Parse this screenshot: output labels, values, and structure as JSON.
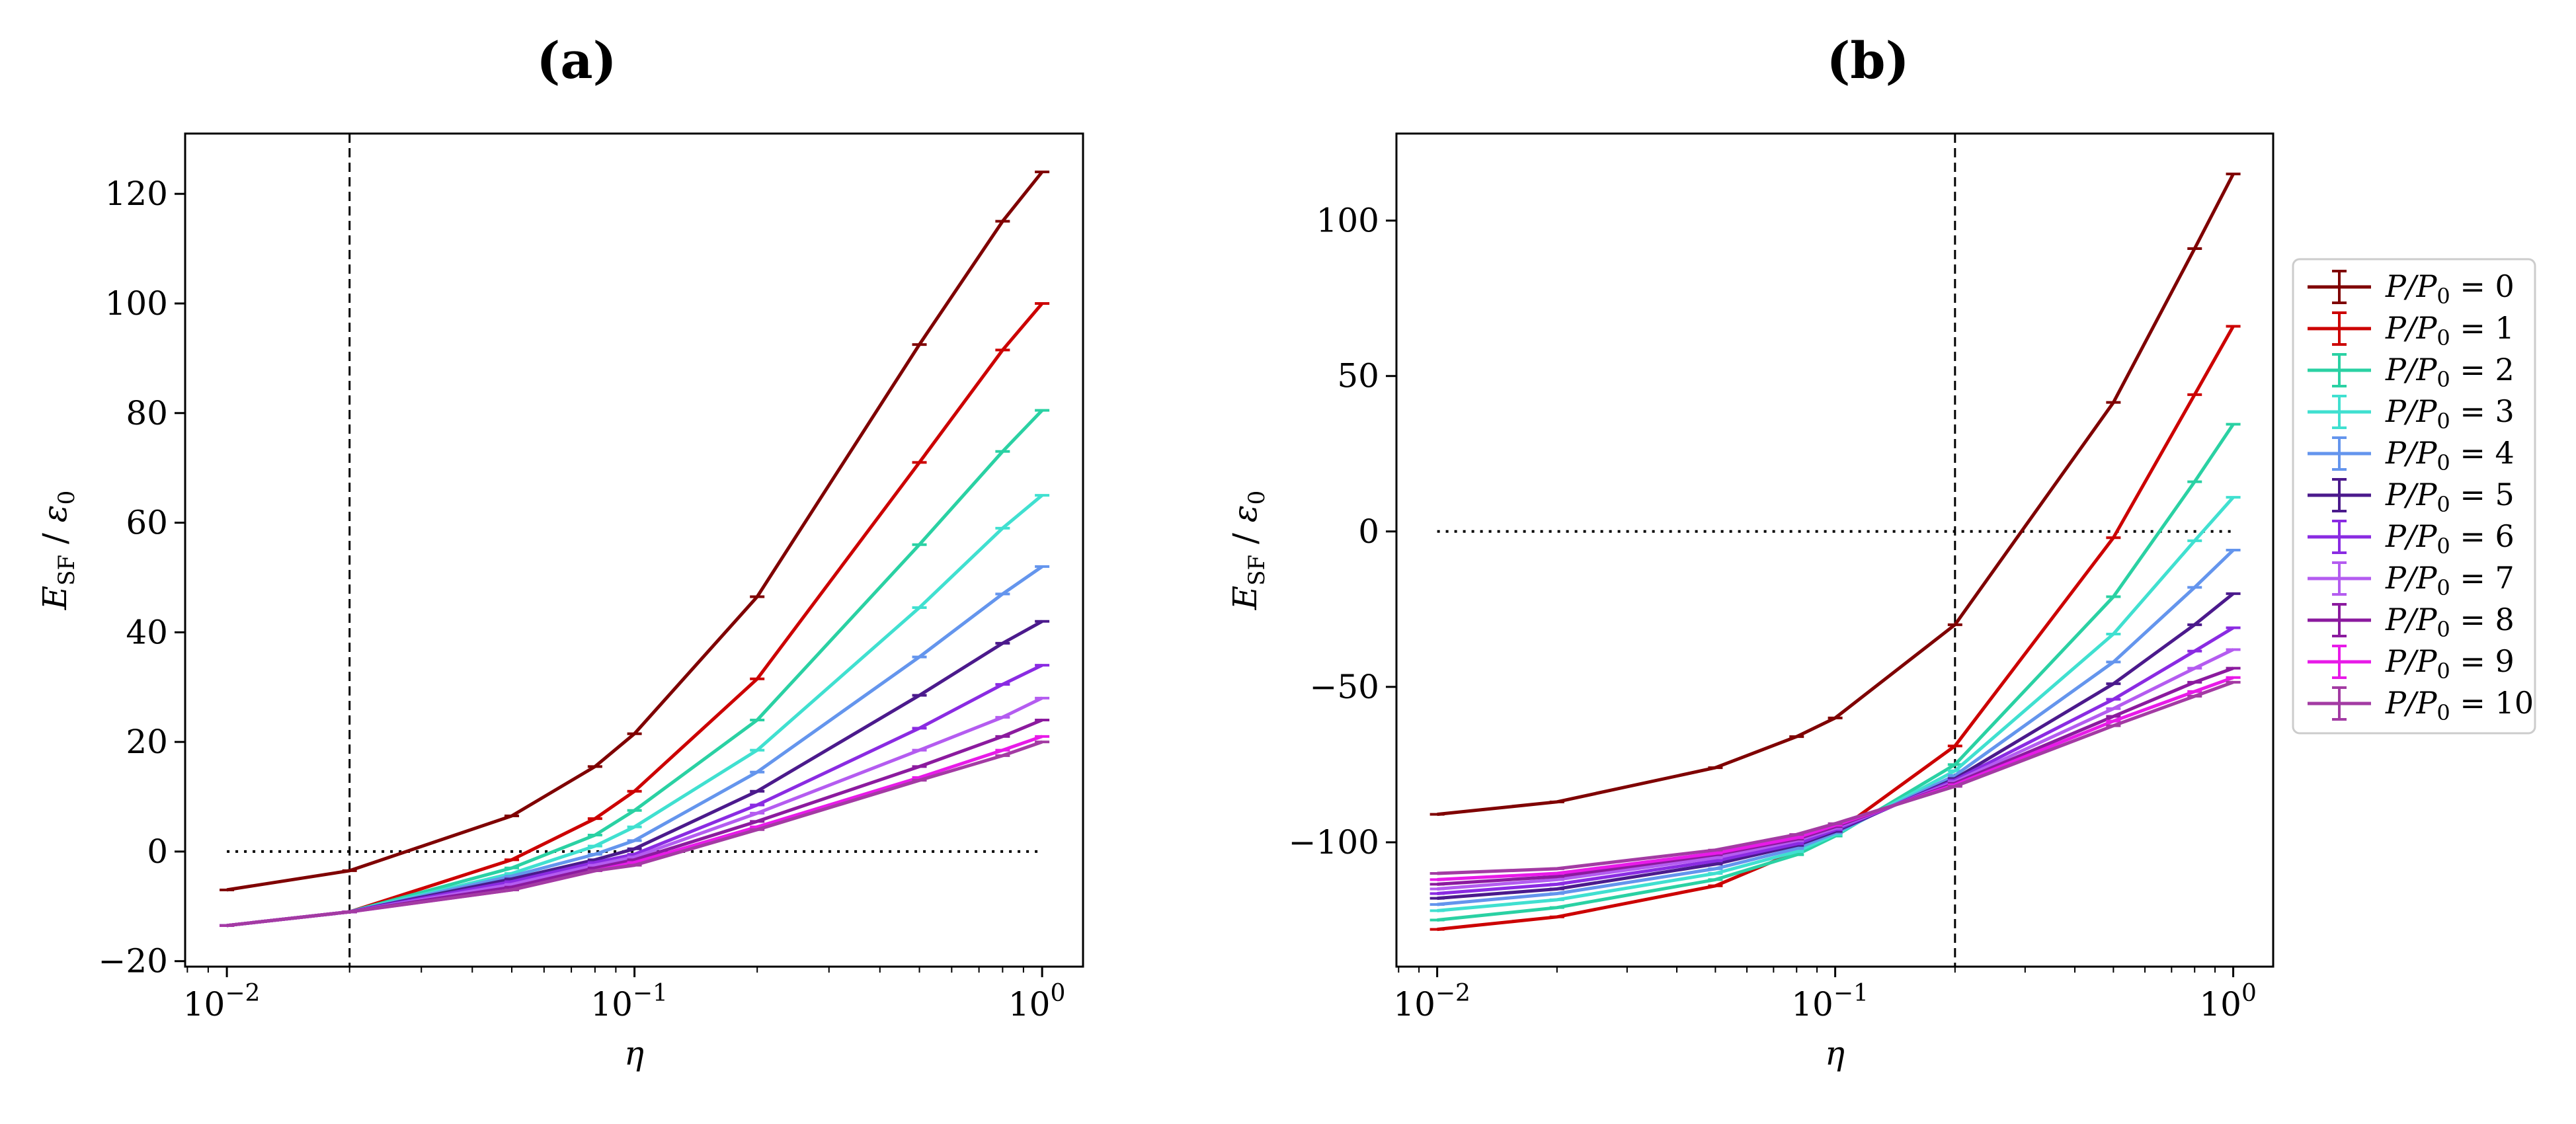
{
  "chart_data": [
    {
      "type": "line",
      "panel_label": "(a)",
      "xscale": "log",
      "xlim": [
        0.0079,
        1.26
      ],
      "ylim": [
        -21,
        131
      ],
      "xlabel": "η",
      "ylabel": "E_SF / ε_0",
      "ylabel_parts": {
        "main": "E",
        "sub": "SF",
        "sep": " / ",
        "main2": "ε",
        "sub2": "0"
      },
      "xticks": [
        {
          "value": 0.01,
          "base": "10",
          "exp": "−2"
        },
        {
          "value": 0.1,
          "base": "10",
          "exp": "−1"
        },
        {
          "value": 1,
          "base": "10",
          "exp": "0"
        }
      ],
      "yticks": [
        {
          "value": -20,
          "label": "−20"
        },
        {
          "value": 0,
          "label": "0"
        },
        {
          "value": 20,
          "label": "20"
        },
        {
          "value": 40,
          "label": "40"
        },
        {
          "value": 60,
          "label": "60"
        },
        {
          "value": 80,
          "label": "80"
        },
        {
          "value": 100,
          "label": "100"
        },
        {
          "value": 120,
          "label": "120"
        }
      ],
      "vline": 0.02,
      "hline": {
        "y": 0,
        "x": [
          0.01,
          1.0
        ]
      },
      "series": [
        {
          "name": "P/P0 = 0",
          "color": "#7f0000",
          "x": [
            0.01,
            0.02,
            0.05,
            0.08,
            0.1,
            0.2,
            0.5,
            0.8,
            1.0
          ],
          "values": [
            -7,
            -3.5,
            6.5,
            15.5,
            21.5,
            46.5,
            92.5,
            115,
            124
          ]
        },
        {
          "name": "P/P0 = 1",
          "color": "#cc0000",
          "x": [
            0.01,
            0.02,
            0.05,
            0.08,
            0.1,
            0.2,
            0.5,
            0.8,
            1.0
          ],
          "values": [
            -13.5,
            -11,
            -1.5,
            6,
            11,
            31.5,
            71,
            91.5,
            100
          ]
        },
        {
          "name": "P/P0 = 2",
          "color": "#2ad1a3",
          "x": [
            0.01,
            0.02,
            0.05,
            0.08,
            0.1,
            0.2,
            0.5,
            0.8,
            1.0
          ],
          "values": [
            -13.5,
            -11,
            -3,
            3,
            7.5,
            24,
            56,
            73,
            80.5
          ]
        },
        {
          "name": "P/P0 = 3",
          "color": "#40e0d0",
          "x": [
            0.01,
            0.02,
            0.05,
            0.08,
            0.1,
            0.2,
            0.5,
            0.8,
            1.0
          ],
          "values": [
            -13.5,
            -11,
            -4,
            1,
            4.5,
            18.5,
            44.5,
            59,
            65
          ]
        },
        {
          "name": "P/P0 = 4",
          "color": "#6495ed",
          "x": [
            0.01,
            0.02,
            0.05,
            0.08,
            0.1,
            0.2,
            0.5,
            0.8,
            1.0
          ],
          "values": [
            -13.5,
            -11,
            -4.5,
            -0.5,
            2,
            14.5,
            35.5,
            47,
            52
          ]
        },
        {
          "name": "P/P0 = 5",
          "color": "#4b1a8c",
          "x": [
            0.01,
            0.02,
            0.05,
            0.08,
            0.1,
            0.2,
            0.5,
            0.8,
            1.0
          ],
          "values": [
            -13.5,
            -11,
            -5,
            -1.5,
            0.5,
            11,
            28.5,
            38,
            42
          ]
        },
        {
          "name": "P/P0 = 6",
          "color": "#8a2be2",
          "x": [
            0.01,
            0.02,
            0.05,
            0.08,
            0.1,
            0.2,
            0.5,
            0.8,
            1.0
          ],
          "values": [
            -13.5,
            -11,
            -5.5,
            -2,
            -0.5,
            8.5,
            22.5,
            30.5,
            34
          ]
        },
        {
          "name": "P/P0 = 7",
          "color": "#b45cf0",
          "x": [
            0.01,
            0.02,
            0.05,
            0.08,
            0.1,
            0.2,
            0.5,
            0.8,
            1.0
          ],
          "values": [
            -13.5,
            -11,
            -6,
            -2.5,
            -1,
            7,
            18.5,
            24.5,
            28
          ]
        },
        {
          "name": "P/P0 = 8",
          "color": "#8b1a9e",
          "x": [
            0.01,
            0.02,
            0.05,
            0.08,
            0.1,
            0.2,
            0.5,
            0.8,
            1.0
          ],
          "values": [
            -13.5,
            -11,
            -6.5,
            -3,
            -1.5,
            5.5,
            15.5,
            21,
            24
          ]
        },
        {
          "name": "P/P0 = 9",
          "color": "#e81ae8",
          "x": [
            0.01,
            0.02,
            0.05,
            0.08,
            0.1,
            0.2,
            0.5,
            0.8,
            1.0
          ],
          "values": [
            -13.5,
            -11,
            -7,
            -3.5,
            -2,
            4.5,
            13.5,
            18.5,
            21
          ]
        },
        {
          "name": "P/P0 = 10",
          "color": "#a33ba3",
          "x": [
            0.01,
            0.02,
            0.05,
            0.08,
            0.1,
            0.2,
            0.5,
            0.8,
            1.0
          ],
          "values": [
            -13.5,
            -11,
            -7,
            -3.5,
            -2.5,
            4,
            13,
            17.5,
            20
          ]
        }
      ]
    },
    {
      "type": "line",
      "panel_label": "(b)",
      "xscale": "log",
      "xlim": [
        0.0079,
        1.26
      ],
      "ylim": [
        -140,
        128
      ],
      "xlabel": "η",
      "ylabel": "E_SF / ε_0",
      "ylabel_parts": {
        "main": "E",
        "sub": "SF",
        "sep": " / ",
        "main2": "ε",
        "sub2": "0"
      },
      "xticks": [
        {
          "value": 0.01,
          "base": "10",
          "exp": "−2"
        },
        {
          "value": 0.1,
          "base": "10",
          "exp": "−1"
        },
        {
          "value": 1,
          "base": "10",
          "exp": "0"
        }
      ],
      "yticks": [
        {
          "value": -100,
          "label": "−100"
        },
        {
          "value": -50,
          "label": "−50"
        },
        {
          "value": 0,
          "label": "0"
        },
        {
          "value": 50,
          "label": "50"
        },
        {
          "value": 100,
          "label": "100"
        }
      ],
      "vline": 0.2,
      "hline": {
        "y": 0,
        "x": [
          0.01,
          1.0
        ]
      },
      "series": [
        {
          "name": "P/P0 = 0",
          "color": "#7f0000",
          "x": [
            0.01,
            0.02,
            0.05,
            0.08,
            0.1,
            0.2,
            0.5,
            0.8,
            1.0
          ],
          "values": [
            -91,
            -87,
            -76,
            -66,
            -60,
            -30,
            41.5,
            91,
            115
          ]
        },
        {
          "name": "P/P0 = 1",
          "color": "#cc0000",
          "x": [
            0.01,
            0.02,
            0.05,
            0.08,
            0.1,
            0.2,
            0.5,
            0.8,
            1.0
          ],
          "values": [
            -128,
            -124,
            -114,
            -103,
            -97,
            -69,
            -2,
            44,
            66
          ]
        },
        {
          "name": "P/P0 = 2",
          "color": "#2ad1a3",
          "x": [
            0.01,
            0.02,
            0.05,
            0.08,
            0.1,
            0.2,
            0.5,
            0.8,
            1.0
          ],
          "values": [
            -125,
            -121,
            -112,
            -104,
            -98,
            -75,
            -21,
            16,
            34.5
          ]
        },
        {
          "name": "P/P0 = 3",
          "color": "#40e0d0",
          "x": [
            0.01,
            0.02,
            0.05,
            0.08,
            0.1,
            0.2,
            0.5,
            0.8,
            1.0
          ],
          "values": [
            -122,
            -118.5,
            -110,
            -103,
            -97.5,
            -77,
            -33,
            -3,
            11
          ]
        },
        {
          "name": "P/P0 = 4",
          "color": "#6495ed",
          "x": [
            0.01,
            0.02,
            0.05,
            0.08,
            0.1,
            0.2,
            0.5,
            0.8,
            1.0
          ],
          "values": [
            -120,
            -116.5,
            -108.5,
            -102,
            -97,
            -78.5,
            -42,
            -18,
            -6
          ]
        },
        {
          "name": "P/P0 = 5",
          "color": "#4b1a8c",
          "x": [
            0.01,
            0.02,
            0.05,
            0.08,
            0.1,
            0.2,
            0.5,
            0.8,
            1.0
          ],
          "values": [
            -118,
            -115,
            -107,
            -101,
            -96.5,
            -79.5,
            -49,
            -30,
            -20
          ]
        },
        {
          "name": "P/P0 = 6",
          "color": "#8a2be2",
          "x": [
            0.01,
            0.02,
            0.05,
            0.08,
            0.1,
            0.2,
            0.5,
            0.8,
            1.0
          ],
          "values": [
            -116.5,
            -113.5,
            -106,
            -100.5,
            -96,
            -80,
            -54,
            -38.5,
            -31
          ]
        },
        {
          "name": "P/P0 = 7",
          "color": "#b45cf0",
          "x": [
            0.01,
            0.02,
            0.05,
            0.08,
            0.1,
            0.2,
            0.5,
            0.8,
            1.0
          ],
          "values": [
            -115,
            -112,
            -105,
            -99.5,
            -95.5,
            -80.5,
            -57,
            -44,
            -38
          ]
        },
        {
          "name": "P/P0 = 8",
          "color": "#8b1a9e",
          "x": [
            0.01,
            0.02,
            0.05,
            0.08,
            0.1,
            0.2,
            0.5,
            0.8,
            1.0
          ],
          "values": [
            -113.5,
            -111,
            -104,
            -99,
            -95,
            -81,
            -59.5,
            -48.5,
            -44
          ]
        },
        {
          "name": "P/P0 = 9",
          "color": "#e81ae8",
          "x": [
            0.01,
            0.02,
            0.05,
            0.08,
            0.1,
            0.2,
            0.5,
            0.8,
            1.0
          ],
          "values": [
            -112,
            -110,
            -103.5,
            -98.5,
            -94.5,
            -81.5,
            -61,
            -51.5,
            -47
          ]
        },
        {
          "name": "P/P0 = 10",
          "color": "#a33ba3",
          "x": [
            0.01,
            0.02,
            0.05,
            0.08,
            0.1,
            0.2,
            0.5,
            0.8,
            1.0
          ],
          "values": [
            -110,
            -108.5,
            -102.5,
            -97.5,
            -94,
            -82,
            -62.5,
            -53,
            -48.5
          ]
        }
      ]
    }
  ],
  "legend": {
    "placement": "right of panel (b)",
    "entries": [
      {
        "label": "P/P0 = 0",
        "color": "#7f0000",
        "lhs": "P/P",
        "sub": "0",
        "rhs": " = 0"
      },
      {
        "label": "P/P0 = 1",
        "color": "#cc0000",
        "lhs": "P/P",
        "sub": "0",
        "rhs": " = 1"
      },
      {
        "label": "P/P0 = 2",
        "color": "#2ad1a3",
        "lhs": "P/P",
        "sub": "0",
        "rhs": " = 2"
      },
      {
        "label": "P/P0 = 3",
        "color": "#40e0d0",
        "lhs": "P/P",
        "sub": "0",
        "rhs": " = 3"
      },
      {
        "label": "P/P0 = 4",
        "color": "#6495ed",
        "lhs": "P/P",
        "sub": "0",
        "rhs": " = 4"
      },
      {
        "label": "P/P0 = 5",
        "color": "#4b1a8c",
        "lhs": "P/P",
        "sub": "0",
        "rhs": " = 5"
      },
      {
        "label": "P/P0 = 6",
        "color": "#8a2be2",
        "lhs": "P/P",
        "sub": "0",
        "rhs": " = 6"
      },
      {
        "label": "P/P0 = 7",
        "color": "#b45cf0",
        "lhs": "P/P",
        "sub": "0",
        "rhs": " = 7"
      },
      {
        "label": "P/P0 = 8",
        "color": "#8b1a9e",
        "lhs": "P/P",
        "sub": "0",
        "rhs": " = 8"
      },
      {
        "label": "P/P0 = 9",
        "color": "#e81ae8",
        "lhs": "P/P",
        "sub": "0",
        "rhs": " = 9"
      },
      {
        "label": "P/P0 = 10",
        "color": "#a33ba3",
        "lhs": "P/P",
        "sub": "0",
        "rhs": " = 10"
      }
    ]
  }
}
